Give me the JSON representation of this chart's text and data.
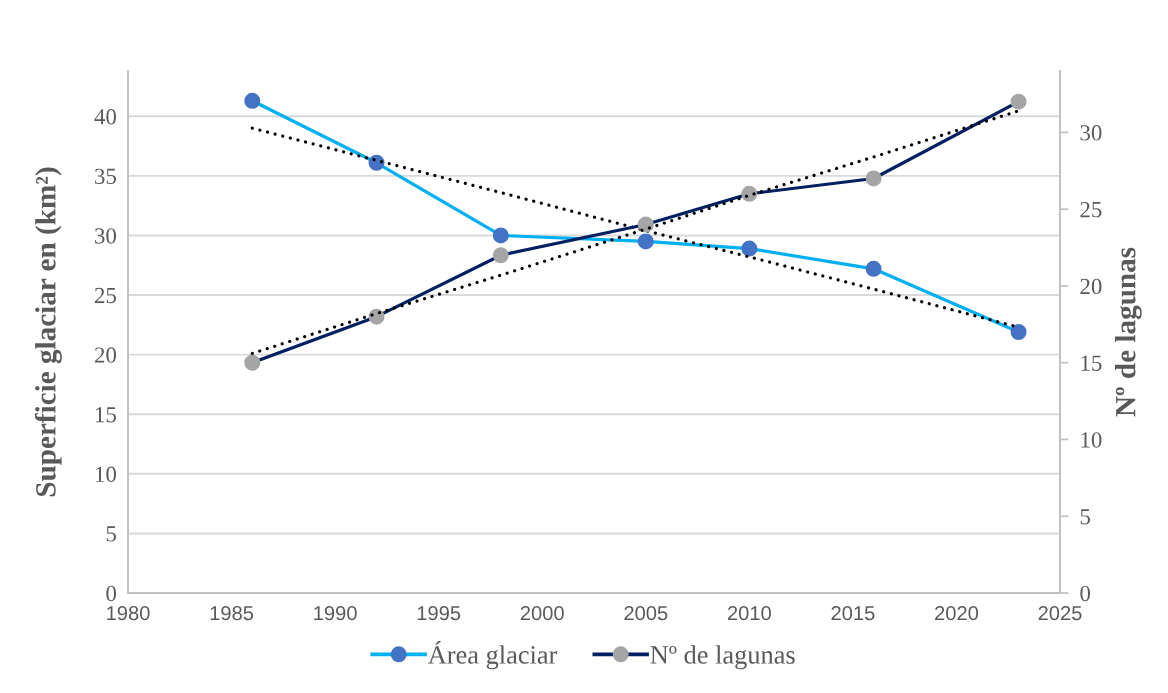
{
  "chart_data": {
    "type": "line",
    "ylabel": "Superficie glaciar en (km²)",
    "y2label": "Nº de lagunas",
    "x": [
      1986,
      1992,
      1998,
      2005,
      2010,
      2016,
      2023
    ],
    "xlim": [
      1980,
      2025
    ],
    "xticks": [
      1980,
      1985,
      1990,
      1995,
      2000,
      2005,
      2010,
      2015,
      2020,
      2025
    ],
    "ylim": [
      0,
      43.8
    ],
    "yticks": [
      0,
      5,
      10,
      15,
      20,
      25,
      30,
      35,
      40
    ],
    "y2lim": [
      0,
      34
    ],
    "y2ticks": [
      0,
      5,
      10,
      15,
      20,
      25,
      30
    ],
    "grid": "y",
    "legend": "bottom",
    "series": [
      {
        "name": "Área glaciar",
        "color": "#00b0f0",
        "colors": [
          "#4472c4",
          "#4472c4",
          "#4472c4",
          "#4472c4",
          "#4472c4",
          "#4472c4",
          "#4472c4"
        ],
        "marker": "circle",
        "line_style": "solid",
        "values": [
          41.3,
          36.1,
          30.0,
          29.5,
          28.9,
          27.2,
          21.9
        ]
      },
      {
        "name": "Nº de lagunas",
        "axis": "y2",
        "color": "#002060",
        "colors": [
          "#a5a5a5",
          "#a5a5a5",
          "#a5a5a5",
          "#a5a5a5",
          "#a5a5a5",
          "#a5a5a5",
          "#a5a5a5"
        ],
        "marker": "circle",
        "line_style": "solid",
        "values": [
          15,
          18,
          22,
          24,
          26,
          27,
          32
        ]
      },
      {
        "color": "#000000",
        "marker": "none",
        "line_style": "dotted",
        "values": [
          39.0,
          36.3,
          33.6,
          30.4,
          28.2,
          25.5,
          22.3
        ]
      },
      {
        "axis": "y2",
        "color": "#000000",
        "marker": "none",
        "line_style": "dotted",
        "values": [
          15.6,
          18.2,
          20.7,
          23.7,
          25.9,
          28.4,
          31.4
        ]
      }
    ]
  }
}
